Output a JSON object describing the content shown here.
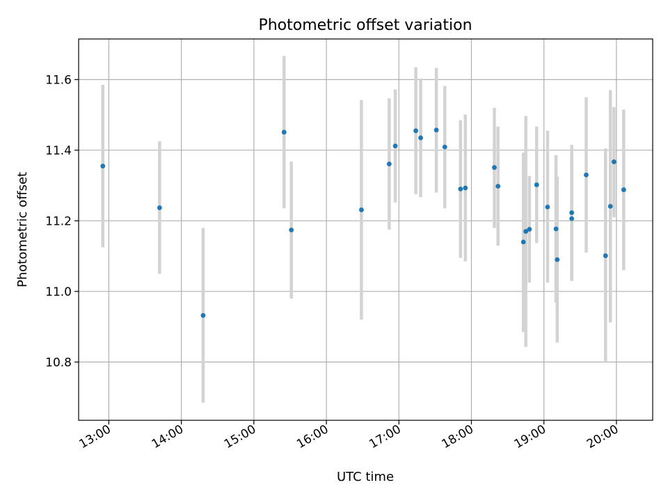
{
  "chart_data": {
    "type": "scatter",
    "title": "Photometric offset variation",
    "xlabel": "UTC time",
    "ylabel": "Photometric offset",
    "xlim": [
      "12:35",
      "20:30"
    ],
    "ylim": [
      10.635,
      11.715
    ],
    "x_ticks": [
      "13:00",
      "14:00",
      "15:00",
      "16:00",
      "17:00",
      "18:00",
      "19:00",
      "20:00"
    ],
    "y_ticks": [
      "10.8",
      "11.0",
      "11.2",
      "11.4",
      "11.6"
    ],
    "grid": true,
    "marker_color": "#1f77b4",
    "errorbar_color": "#d3d3d3",
    "points": [
      {
        "time": "12:55",
        "y": 11.355,
        "ylow": 11.125,
        "yhigh": 11.585
      },
      {
        "time": "13:42",
        "y": 11.237,
        "ylow": 11.05,
        "yhigh": 11.425
      },
      {
        "time": "14:18",
        "y": 10.932,
        "ylow": 10.685,
        "yhigh": 11.18
      },
      {
        "time": "15:25",
        "y": 11.451,
        "ylow": 11.235,
        "yhigh": 11.667
      },
      {
        "time": "15:31",
        "y": 11.174,
        "ylow": 10.98,
        "yhigh": 11.368
      },
      {
        "time": "16:29",
        "y": 11.231,
        "ylow": 10.92,
        "yhigh": 11.542
      },
      {
        "time": "16:52",
        "y": 11.361,
        "ylow": 11.175,
        "yhigh": 11.547
      },
      {
        "time": "16:57",
        "y": 11.412,
        "ylow": 11.252,
        "yhigh": 11.572
      },
      {
        "time": "17:14",
        "y": 11.455,
        "ylow": 11.275,
        "yhigh": 11.635
      },
      {
        "time": "17:18",
        "y": 11.435,
        "ylow": 11.267,
        "yhigh": 11.603
      },
      {
        "time": "17:31",
        "y": 11.457,
        "ylow": 11.28,
        "yhigh": 11.633
      },
      {
        "time": "17:38",
        "y": 11.409,
        "ylow": 11.235,
        "yhigh": 11.582
      },
      {
        "time": "17:51",
        "y": 11.29,
        "ylow": 11.095,
        "yhigh": 11.485
      },
      {
        "time": "17:55",
        "y": 11.293,
        "ylow": 11.085,
        "yhigh": 11.501
      },
      {
        "time": "18:19",
        "y": 11.351,
        "ylow": 11.18,
        "yhigh": 11.52
      },
      {
        "time": "18:22",
        "y": 11.298,
        "ylow": 11.13,
        "yhigh": 11.467
      },
      {
        "time": "18:43",
        "y": 11.14,
        "ylow": 10.885,
        "yhigh": 11.393
      },
      {
        "time": "18:45",
        "y": 11.17,
        "ylow": 10.843,
        "yhigh": 11.497
      },
      {
        "time": "18:48",
        "y": 11.176,
        "ylow": 11.025,
        "yhigh": 11.327
      },
      {
        "time": "18:54",
        "y": 11.302,
        "ylow": 11.137,
        "yhigh": 11.467
      },
      {
        "time": "19:03",
        "y": 11.239,
        "ylow": 11.025,
        "yhigh": 11.455
      },
      {
        "time": "19:10",
        "y": 11.177,
        "ylow": 10.968,
        "yhigh": 11.386
      },
      {
        "time": "19:11",
        "y": 11.09,
        "ylow": 10.855,
        "yhigh": 11.325
      },
      {
        "time": "19:23",
        "y": 11.223,
        "ylow": 11.03,
        "yhigh": 11.415
      },
      {
        "time": "19:23",
        "y": 11.206,
        "ylow": 11.03,
        "yhigh": 11.382
      },
      {
        "time": "19:35",
        "y": 11.33,
        "ylow": 11.11,
        "yhigh": 11.55
      },
      {
        "time": "19:51",
        "y": 11.101,
        "ylow": 10.8,
        "yhigh": 11.405
      },
      {
        "time": "19:55",
        "y": 11.241,
        "ylow": 10.912,
        "yhigh": 11.57
      },
      {
        "time": "19:58",
        "y": 11.367,
        "ylow": 11.21,
        "yhigh": 11.522
      },
      {
        "time": "20:06",
        "y": 11.288,
        "ylow": 11.06,
        "yhigh": 11.515
      }
    ]
  }
}
